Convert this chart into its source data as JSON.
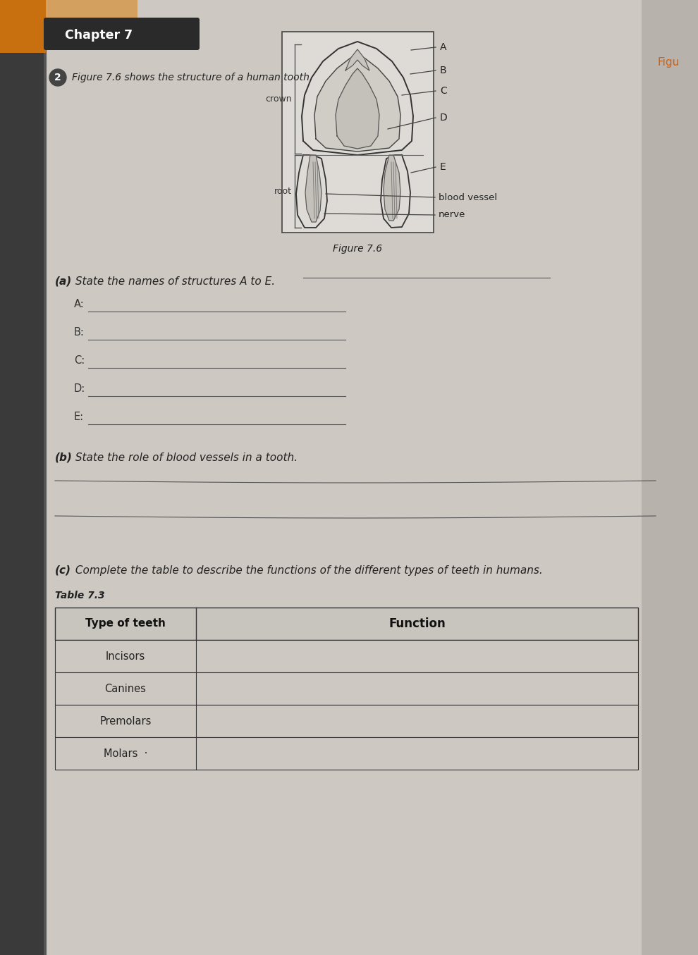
{
  "bg_color": "#b8b0a8",
  "page_bg": "#cdc8c2",
  "chapter_header": "Chapter 7",
  "header_bg": "#2a2a2a",
  "question_num": "2",
  "intro_text": "Figure 7.6 shows the structure of a human tooth.",
  "figure_caption": "Figure 7.6",
  "crown_label": "crown",
  "root_label": "root",
  "tooth_labels_right": [
    "A",
    "B",
    "C",
    "D",
    "E"
  ],
  "tooth_extra_labels": [
    "blood vessel",
    "nerve"
  ],
  "part_a_bold": "(a)",
  "part_a_text": " State the names of structures A to E.",
  "answer_labels": [
    "A:",
    "B:",
    "C:",
    "D:",
    "E:"
  ],
  "part_b_bold": "(b)",
  "part_b_text": " State the role of blood vessels in a tooth.",
  "part_c_bold": "(c)",
  "part_c_text": " Complete the table to describe the functions of the different types of teeth in humans.",
  "table_title": "Table 7.3",
  "table_col1_header": "Type of teeth",
  "table_col2_header": "Function",
  "table_rows": [
    "Incisors",
    "Canines",
    "Premolars",
    "Molars  ·"
  ],
  "right_label": "Figu"
}
